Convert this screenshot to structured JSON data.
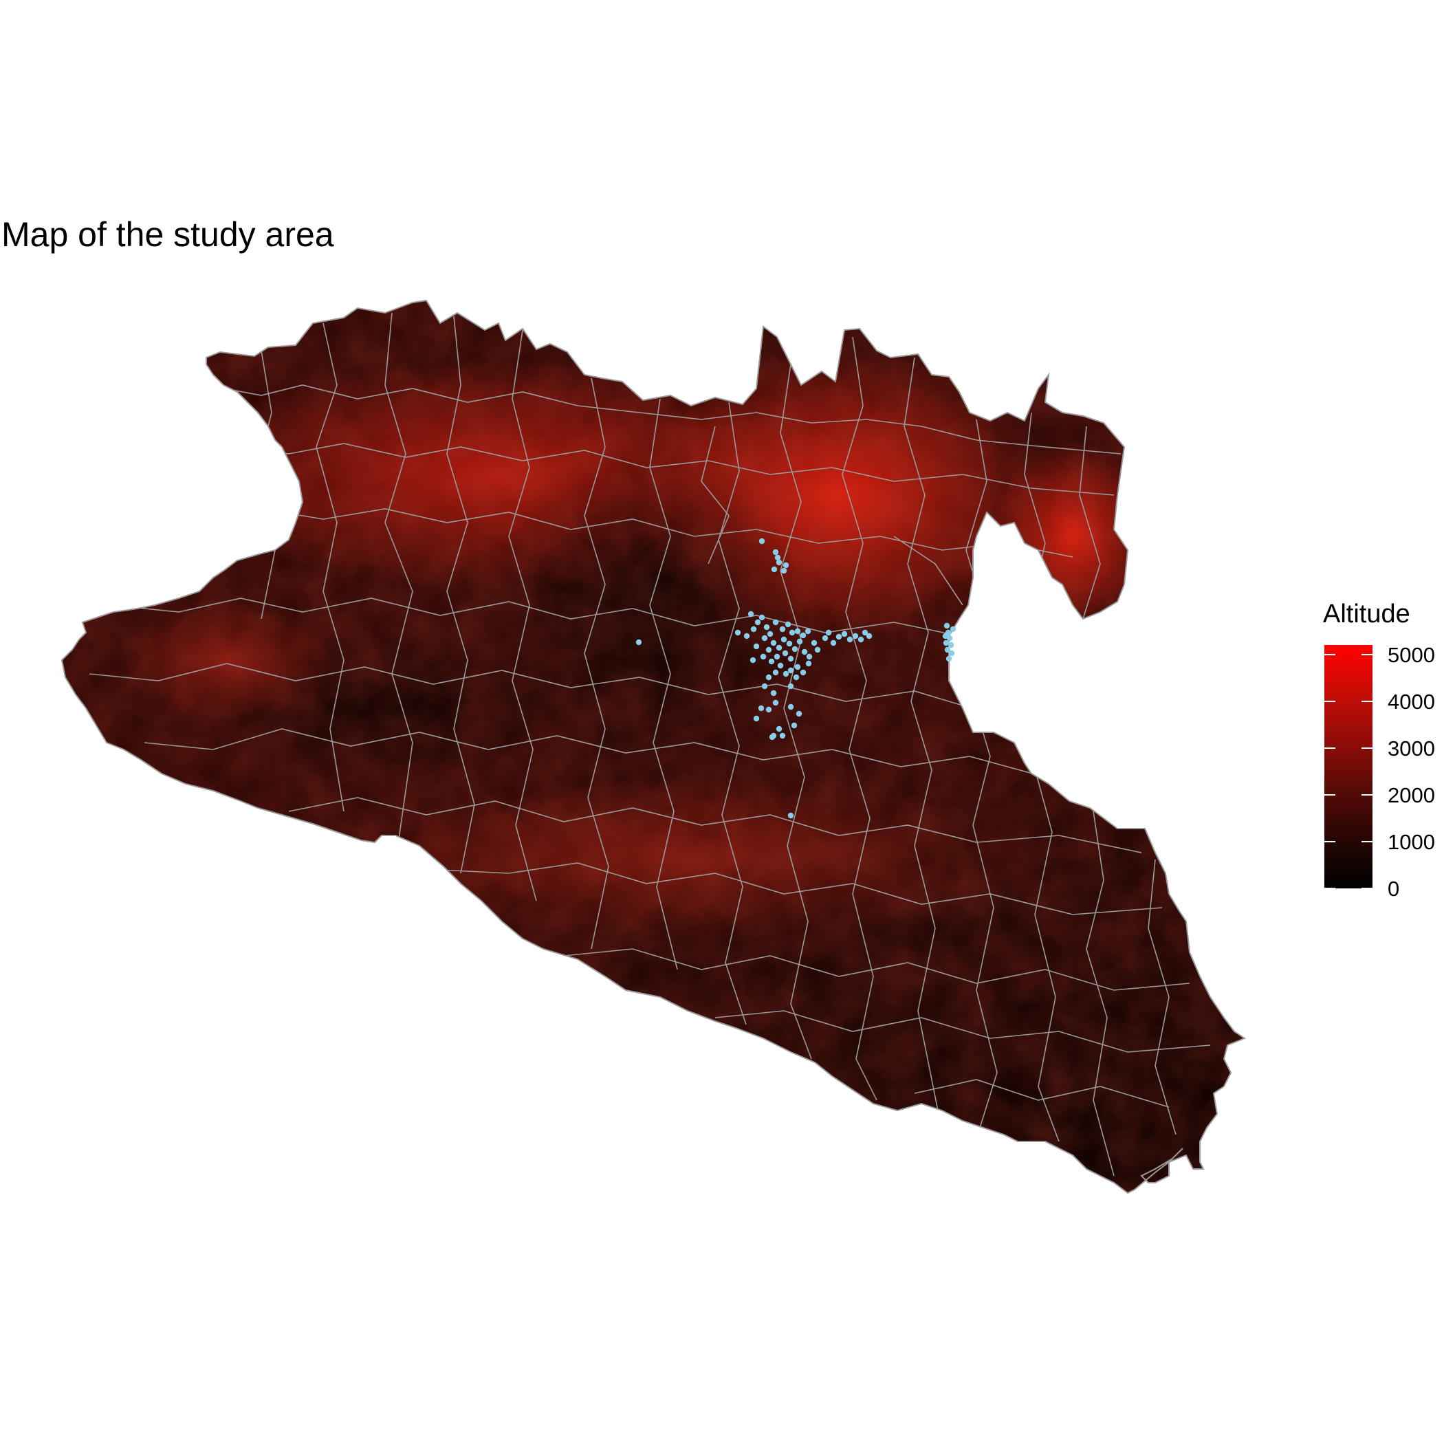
{
  "title": "Map of the study area",
  "legend": {
    "title": "Altitude",
    "range": [
      0,
      5200
    ],
    "ticks": [
      {
        "value": 0,
        "label": "0"
      },
      {
        "value": 1000,
        "label": "1000"
      },
      {
        "value": 2000,
        "label": "2000"
      },
      {
        "value": 3000,
        "label": "3000"
      },
      {
        "value": 4000,
        "label": "4000"
      },
      {
        "value": 5000,
        "label": "5000"
      }
    ],
    "colors": {
      "low": "#000000",
      "mid": "#5a0b06",
      "high": "#ff0000"
    }
  },
  "styles": {
    "boundary_color": "#9a9a9a",
    "point_color": "#87ceeb",
    "land_base": "#2a0704"
  }
}
